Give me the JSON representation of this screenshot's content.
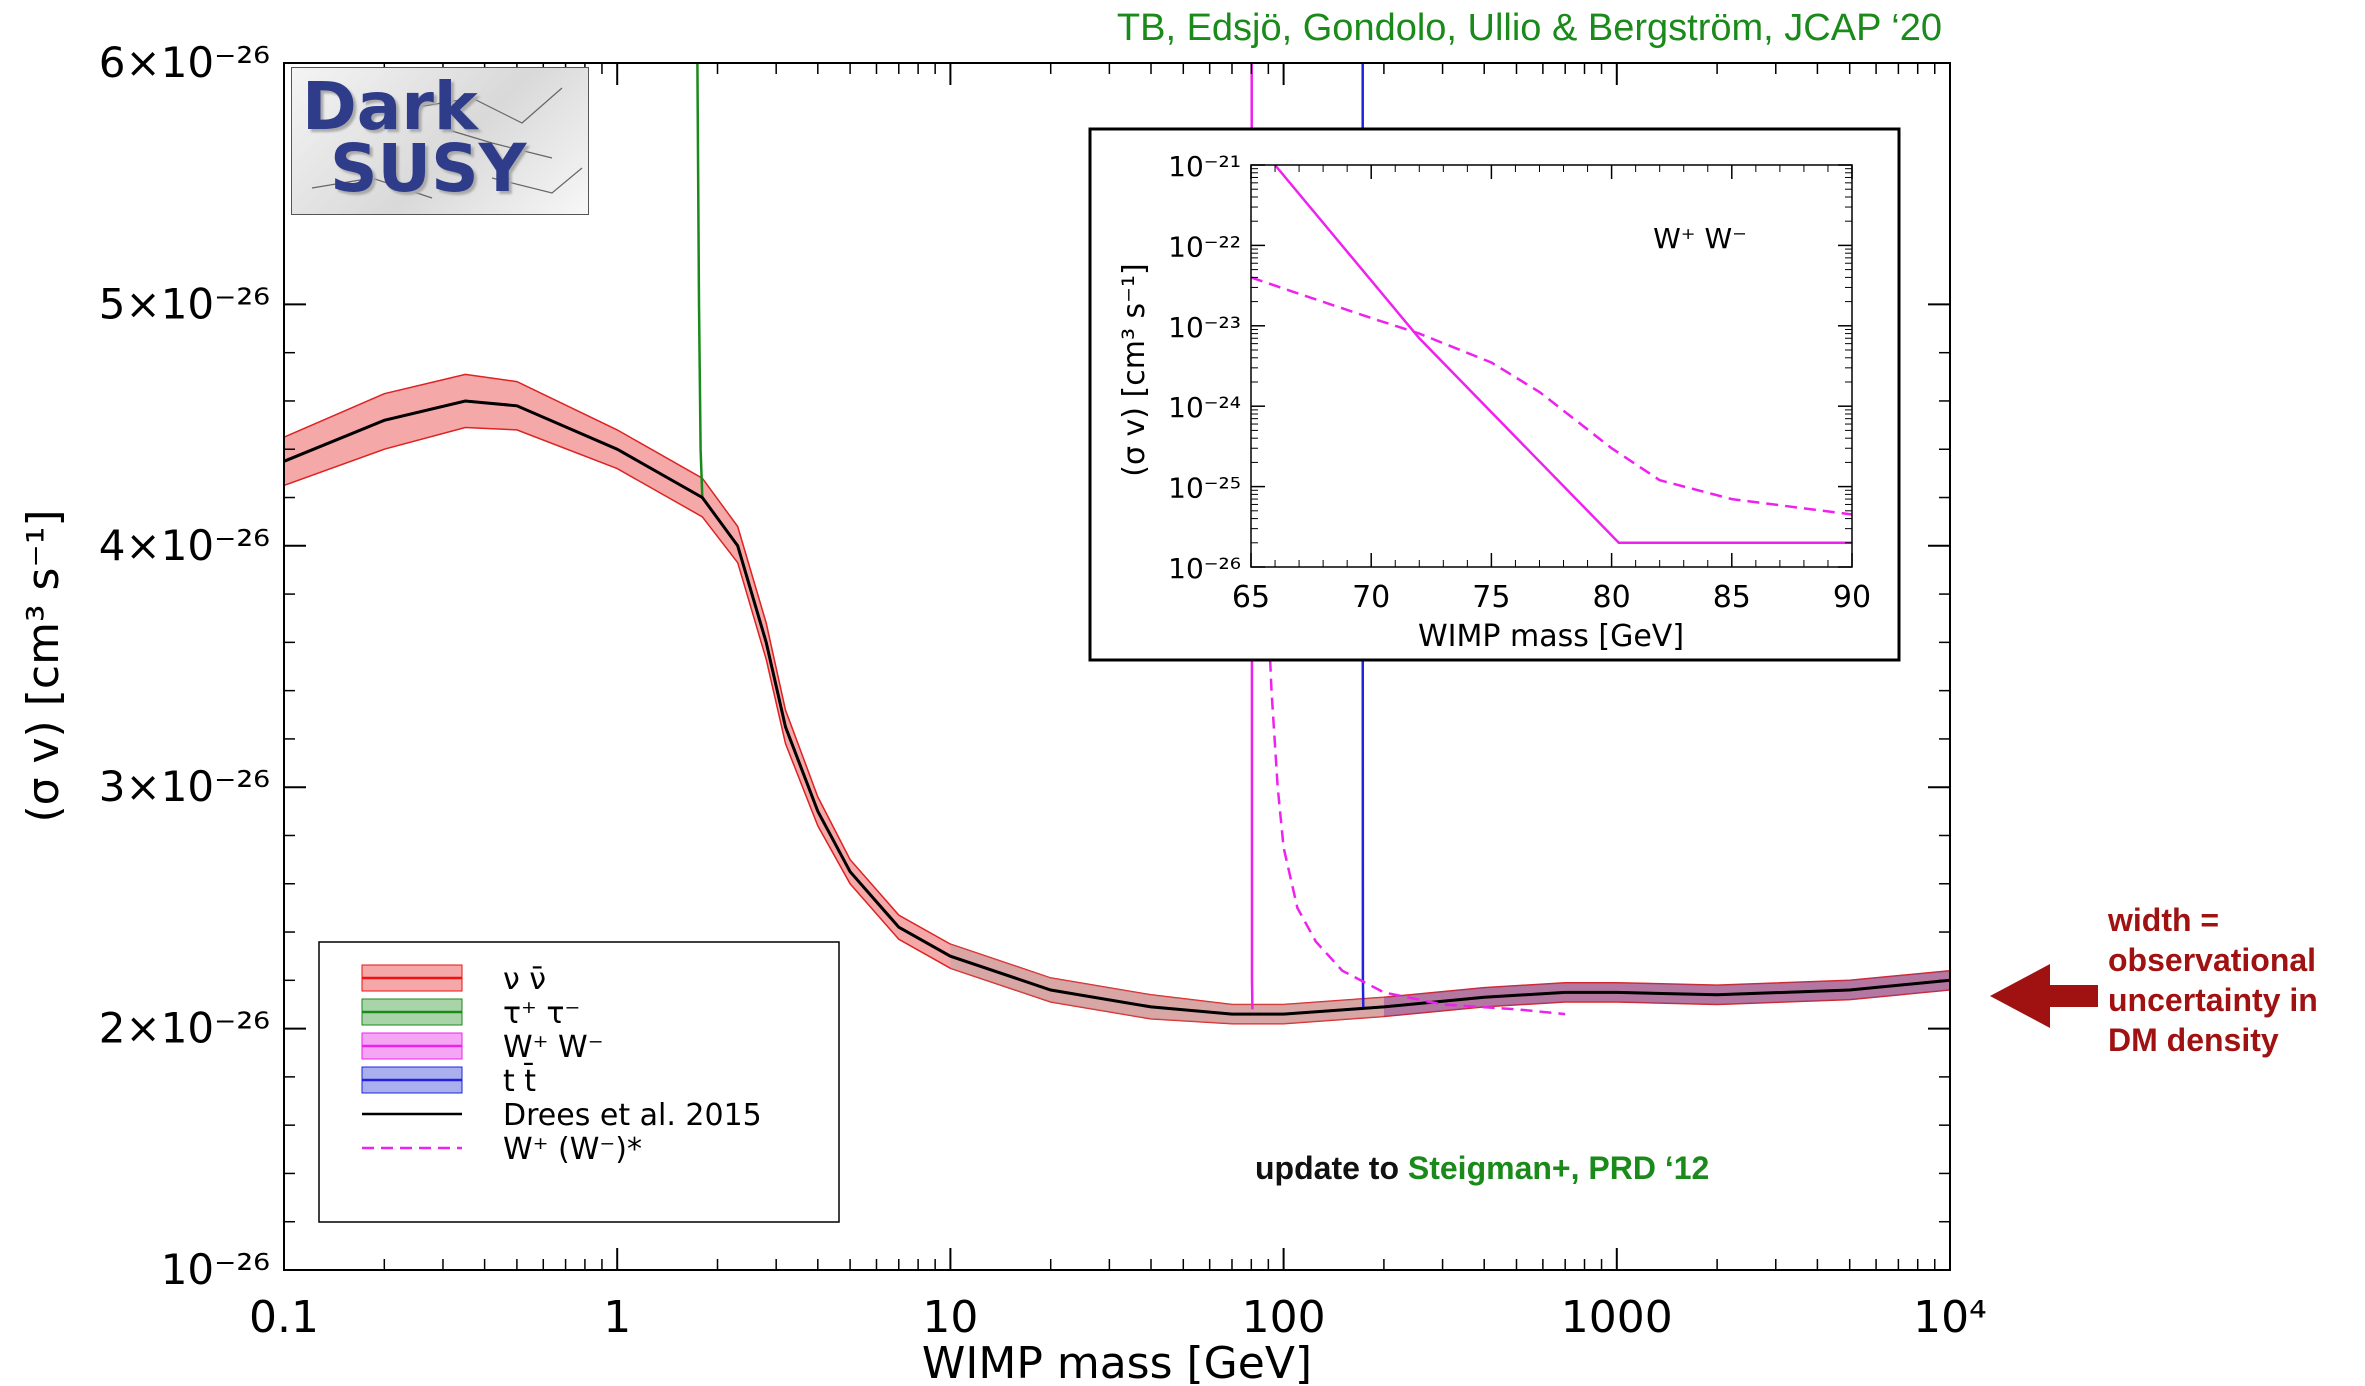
{
  "header": {
    "credit": "TB, Edsjö, Gondolo, Ullio & Bergström, JCAP ‘20",
    "credit_color": "#1a8a1a"
  },
  "logo": {
    "line1": "Dark",
    "line2": "SUSY"
  },
  "update_note": {
    "prefix": "update to ",
    "highlight": "Steigman+, PRD ‘12",
    "highlight_color": "#1a8a1a"
  },
  "annotation": {
    "lines": [
      "width =",
      "observational",
      "uncertainty in",
      "DM density"
    ],
    "color": "#a01212"
  },
  "chart_data": [
    {
      "type": "line",
      "xlabel": "WIMP mass [GeV]",
      "ylabel": "(σ v) [cm³ s⁻¹]",
      "x_scale": "log",
      "xlim": [
        0.1,
        10000
      ],
      "ylim": [
        1e-26,
        6e-26
      ],
      "x_ticks": [
        {
          "value": 0.1,
          "label": "0.1"
        },
        {
          "value": 1,
          "label": "1"
        },
        {
          "value": 10,
          "label": "10"
        },
        {
          "value": 100,
          "label": "100"
        },
        {
          "value": 1000,
          "label": "1000"
        },
        {
          "value": 10000,
          "label": "10⁴"
        }
      ],
      "y_ticks": [
        {
          "value": 1e-26,
          "label": "10⁻²⁶"
        },
        {
          "value": 2e-26,
          "label": "2×10⁻²⁶"
        },
        {
          "value": 3e-26,
          "label": "3×10⁻²⁶"
        },
        {
          "value": 4e-26,
          "label": "4×10⁻²⁶"
        },
        {
          "value": 5e-26,
          "label": "5×10⁻²⁶"
        },
        {
          "value": 6e-26,
          "label": "6×10⁻²⁶"
        }
      ],
      "band_color": "#f4a8a8",
      "band_edge_color": "#dd2222",
      "series": [
        {
          "name": "ν ν̄",
          "color": "#ee1111",
          "style": "solid",
          "band": true,
          "x": [
            0.1,
            0.2,
            0.35,
            0.5,
            1,
            1.8,
            2.3,
            2.8,
            3.2,
            4,
            5,
            7,
            10,
            20,
            40,
            70,
            100,
            200,
            400,
            700,
            1000,
            2000,
            5000,
            10000
          ],
          "y": [
            4.35,
            4.52,
            4.6,
            4.58,
            4.4,
            4.2,
            4.0,
            3.6,
            3.25,
            2.9,
            2.65,
            2.42,
            2.3,
            2.16,
            2.09,
            2.06,
            2.06,
            2.09,
            2.13,
            2.15,
            2.15,
            2.14,
            2.16,
            2.2
          ],
          "lo": [
            4.25,
            4.4,
            4.49,
            4.48,
            4.32,
            4.12,
            3.93,
            3.53,
            3.18,
            2.84,
            2.6,
            2.37,
            2.25,
            2.11,
            2.04,
            2.02,
            2.02,
            2.05,
            2.09,
            2.11,
            2.11,
            2.1,
            2.12,
            2.16
          ],
          "hi": [
            4.45,
            4.63,
            4.71,
            4.68,
            4.48,
            4.28,
            4.08,
            3.68,
            3.32,
            2.96,
            2.7,
            2.47,
            2.35,
            2.21,
            2.14,
            2.1,
            2.1,
            2.13,
            2.17,
            2.19,
            2.19,
            2.18,
            2.2,
            2.24
          ]
        },
        {
          "name": "τ⁺ τ⁻",
          "color": "#1a8a1a",
          "style": "solid",
          "band": true,
          "x": [
            1.74,
            1.76,
            1.78,
            1.8
          ],
          "y": [
            6.0,
            5.0,
            4.4,
            4.2
          ]
        },
        {
          "name": "W⁺ W⁻",
          "color": "#ee22ee",
          "style": "solid",
          "band": true,
          "x": [
            80.2,
            80.3,
            80.4,
            80.6
          ],
          "y": [
            6.0,
            4.0,
            2.2,
            2.08
          ]
        },
        {
          "name": "t t̄",
          "color": "#2222dd",
          "style": "solid",
          "band": true,
          "x": [
            172.7,
            172.8,
            173.0,
            173.4
          ],
          "y": [
            6.0,
            4.0,
            2.2,
            2.08
          ]
        },
        {
          "name": "Drees et al. 2015",
          "color": "#000000",
          "style": "solid",
          "band": false,
          "x": [
            0.1,
            0.2,
            0.35,
            0.5,
            1,
            1.8,
            2.3,
            2.8,
            3.2,
            4,
            5,
            7,
            10,
            20,
            40,
            70,
            100,
            200,
            400,
            700,
            1000,
            2000,
            5000,
            10000
          ],
          "y": [
            4.35,
            4.52,
            4.6,
            4.58,
            4.4,
            4.2,
            4.0,
            3.6,
            3.25,
            2.9,
            2.65,
            2.42,
            2.3,
            2.16,
            2.09,
            2.06,
            2.06,
            2.09,
            2.13,
            2.15,
            2.15,
            2.14,
            2.16,
            2.2
          ]
        },
        {
          "name": "W⁺ (W⁻)*",
          "color": "#ee22ee",
          "style": "dashed",
          "band": false,
          "x": [
            88,
            92,
            96,
            100,
            110,
            125,
            150,
            200,
            300,
            500,
            700
          ],
          "y": [
            4.0,
            3.4,
            3.0,
            2.75,
            2.5,
            2.36,
            2.24,
            2.15,
            2.1,
            2.08,
            2.06
          ]
        }
      ],
      "legend": "lower-left",
      "grid": false
    },
    {
      "type": "line",
      "xlabel": "WIMP mass [GeV]",
      "ylabel": "(σ v) [cm³ s⁻¹]",
      "y_scale": "log",
      "xlim": [
        65,
        90
      ],
      "ylim": [
        1e-26,
        1e-21
      ],
      "label": "W⁺ W⁻",
      "x_ticks": [
        {
          "value": 65,
          "label": "65"
        },
        {
          "value": 70,
          "label": "70"
        },
        {
          "value": 75,
          "label": "75"
        },
        {
          "value": 80,
          "label": "80"
        },
        {
          "value": 85,
          "label": "85"
        },
        {
          "value": 90,
          "label": "90"
        }
      ],
      "y_ticks": [
        {
          "value": -26,
          "label": "10⁻²⁶"
        },
        {
          "value": -25,
          "label": "10⁻²⁵"
        },
        {
          "value": -24,
          "label": "10⁻²⁴"
        },
        {
          "value": -23,
          "label": "10⁻²³"
        },
        {
          "value": -22,
          "label": "10⁻²²"
        },
        {
          "value": -21,
          "label": "10⁻²¹"
        }
      ],
      "series": [
        {
          "color": "#ee22ee",
          "style": "solid",
          "x": [
            66,
            72,
            80.3,
            90
          ],
          "y": [
            1e-21,
            7e-24,
            2e-26,
            2e-26
          ]
        },
        {
          "color": "#ee22ee",
          "style": "dashed",
          "x": [
            65,
            67,
            70,
            72,
            75,
            77,
            80,
            82,
            85,
            90
          ],
          "y": [
            4e-23,
            2.5e-23,
            1.25e-23,
            8e-24,
            3.5e-24,
            1.5e-24,
            3e-25,
            1.2e-25,
            7e-26,
            4.5e-26
          ]
        }
      ]
    }
  ]
}
